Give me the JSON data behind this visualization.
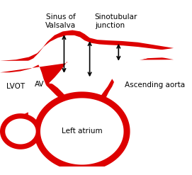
{
  "bg_color": "#ffffff",
  "red_color": "#dd0000",
  "text_color": "#000000",
  "arrow_color": "#000000",
  "labels": {
    "sinus_of_valsalva": "Sinus of\nValsalva",
    "sinotubular_junction": "Sinotubular\njunction",
    "lvot": "LVOT",
    "av": "AV",
    "ascending_aorta": "Ascending aorta",
    "left_atrium": "Left atrium"
  },
  "figsize": [
    2.71,
    2.47
  ],
  "dpi": 100,
  "fontsize_labels": 7.5
}
